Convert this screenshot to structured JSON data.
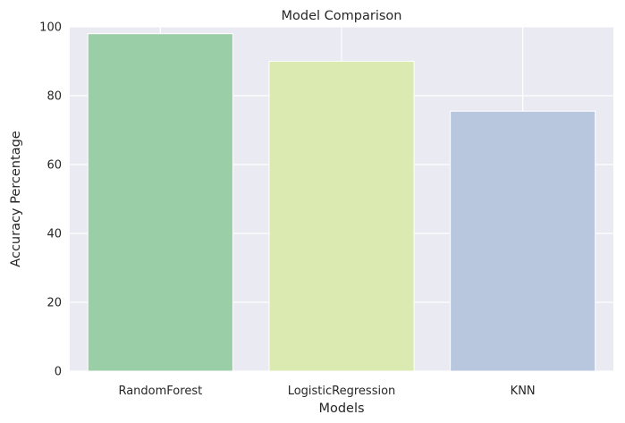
{
  "chart_data": {
    "type": "bar",
    "title": "Model Comparison",
    "xlabel": "Models",
    "ylabel": "Accuracy Percentage",
    "categories": [
      "RandomForest",
      "LogisticRegression",
      "KNN"
    ],
    "values": [
      98,
      90,
      75.5
    ],
    "colors": [
      "#99cea6",
      "#daeab0",
      "#b8c7de"
    ],
    "ylim": [
      0,
      100
    ],
    "yticks": [
      0,
      20,
      40,
      60,
      80,
      100
    ],
    "grid": true,
    "background": "#eaeaf2",
    "grid_color": "#ffffff"
  }
}
